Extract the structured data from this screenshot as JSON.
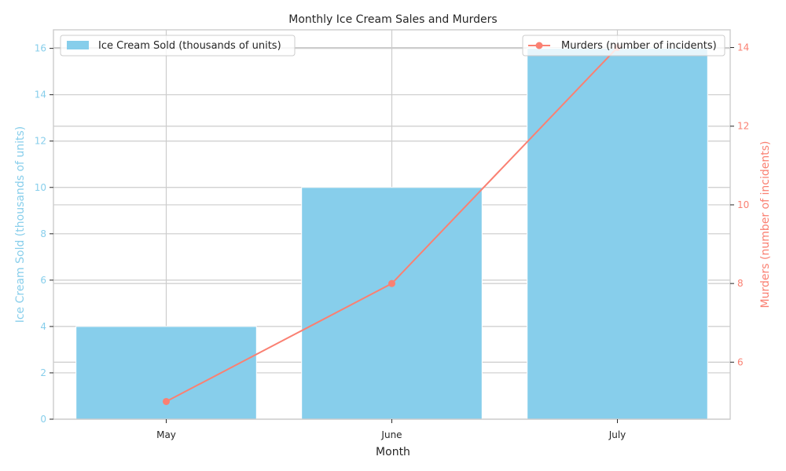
{
  "chart_data": {
    "type": "bar+line",
    "title": "Monthly Ice Cream Sales and Murders",
    "xlabel": "Month",
    "categories": [
      "May",
      "June",
      "July"
    ],
    "series": [
      {
        "name": "Ice Cream Sold (thousands of units)",
        "type": "bar",
        "axis": "left",
        "values": [
          4,
          10,
          16
        ],
        "color": "#87ceeb"
      },
      {
        "name": "Murders (number of incidents)",
        "type": "line",
        "axis": "right",
        "values": [
          5,
          8,
          14
        ],
        "color": "#fa8072"
      }
    ],
    "y_left": {
      "label": "Ice Cream Sold (thousands of units)",
      "ticks": [
        "0",
        "2",
        "4",
        "6",
        "8",
        "10",
        "12",
        "14",
        "16"
      ],
      "tick_values": [
        0,
        2,
        4,
        6,
        8,
        10,
        12,
        14,
        16
      ],
      "ylim": [
        0,
        16.8
      ],
      "color": "#87ceeb"
    },
    "y_right": {
      "label": "Murders (number of incidents)",
      "ticks": [
        "6",
        "8",
        "10",
        "12",
        "14"
      ],
      "tick_values": [
        6,
        8,
        10,
        12,
        14
      ],
      "ylim": [
        4.55,
        14.45
      ],
      "color": "#fa8072"
    },
    "grid": true,
    "legend_left_position": "top-left",
    "legend_right_position": "top-right"
  }
}
